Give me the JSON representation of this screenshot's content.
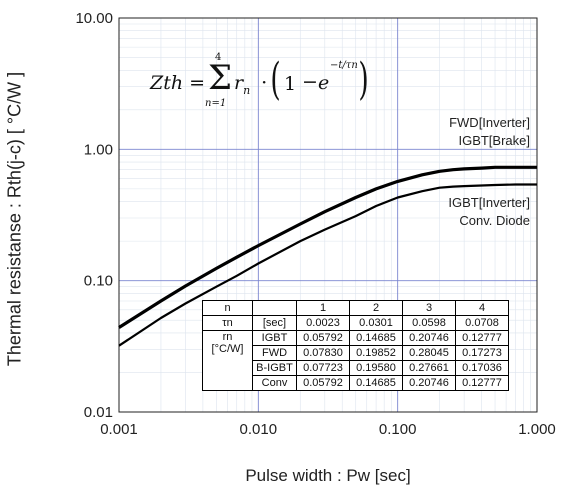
{
  "chart_data": {
    "type": "line",
    "ylabel": "Thermal resistanse  :  Rth(j-c)  [ °C/W ]",
    "xlabel": "Pulse width : Pw [sec]",
    "x_scale": "log",
    "y_scale": "log",
    "xlim": [
      0.001,
      1.0
    ],
    "ylim": [
      0.01,
      10.0
    ],
    "x_ticks": [
      "0.001",
      "0.010",
      "0.100",
      "1.000"
    ],
    "y_ticks": [
      "0.01",
      "0.10",
      "1.00",
      "10.00"
    ],
    "grid": true,
    "series": [
      {
        "name": "FWD[Inverter] IGBT[Brake]",
        "x": [
          0.001,
          0.002,
          0.003,
          0.005,
          0.007,
          0.01,
          0.02,
          0.03,
          0.05,
          0.07,
          0.1,
          0.15,
          0.2,
          0.25,
          0.3,
          0.4,
          0.5,
          0.7,
          1.0
        ],
        "y": [
          0.044,
          0.07,
          0.091,
          0.124,
          0.151,
          0.185,
          0.27,
          0.335,
          0.43,
          0.5,
          0.57,
          0.64,
          0.68,
          0.7,
          0.71,
          0.72,
          0.73,
          0.73,
          0.73
        ]
      },
      {
        "name": "IGBT[Inverter] Conv. Diode",
        "x": [
          0.001,
          0.002,
          0.003,
          0.005,
          0.007,
          0.01,
          0.02,
          0.03,
          0.05,
          0.07,
          0.1,
          0.15,
          0.2,
          0.25,
          0.3,
          0.4,
          0.5,
          0.7,
          1.0
        ],
        "y": [
          0.032,
          0.052,
          0.067,
          0.09,
          0.109,
          0.135,
          0.2,
          0.245,
          0.31,
          0.37,
          0.43,
          0.48,
          0.51,
          0.52,
          0.525,
          0.53,
          0.535,
          0.54,
          0.54
        ]
      }
    ],
    "annotations": [
      {
        "lines": [
          "FWD[Inverter]",
          "IGBT[Brake]"
        ]
      },
      {
        "lines": [
          "IGBT[Inverter]",
          "Conv. Diode"
        ]
      }
    ],
    "formula": {
      "lhs": "Zth",
      "equals": "=",
      "sum_upper": "4",
      "sum_lower": "n=1",
      "term": "r",
      "term_sub": "n",
      "one": "1",
      "minus": "−",
      "exp_base": "e",
      "exp_num": "t",
      "exp_den": "τn"
    },
    "table": {
      "header": [
        "n",
        "",
        "1",
        "2",
        "3",
        "4"
      ],
      "tau_row": {
        "label": "τn",
        "unit": "[sec]",
        "values": [
          "0.0023",
          "0.0301",
          "0.0598",
          "0.0708"
        ]
      },
      "r_label": "rn",
      "r_unit": "[°C/W]",
      "r_rows": [
        {
          "name": "IGBT",
          "values": [
            "0.05792",
            "0.14685",
            "0.20746",
            "0.12777"
          ]
        },
        {
          "name": "FWD",
          "values": [
            "0.07830",
            "0.19852",
            "0.28045",
            "0.17273"
          ]
        },
        {
          "name": "B-IGBT",
          "values": [
            "0.07723",
            "0.19580",
            "0.27661",
            "0.17036"
          ]
        },
        {
          "name": "Conv",
          "values": [
            "0.05792",
            "0.14685",
            "0.20746",
            "0.12777"
          ]
        }
      ]
    }
  }
}
